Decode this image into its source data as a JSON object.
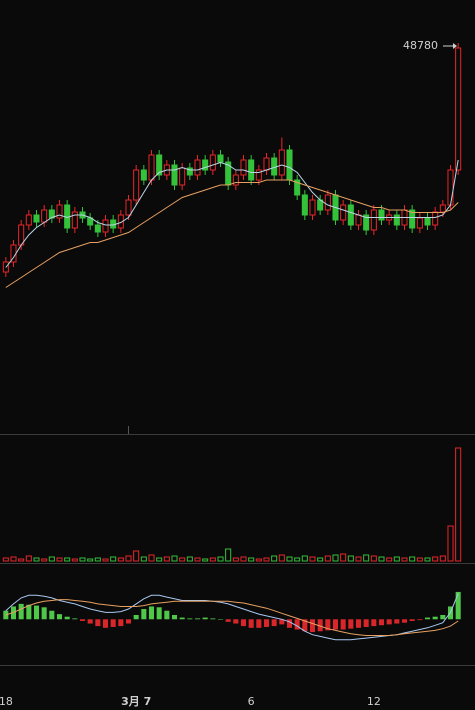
{
  "chart_data": {
    "type": "candlestick",
    "categories": [
      "18",
      null,
      null,
      null,
      null,
      null,
      null,
      null,
      null,
      null,
      null,
      null,
      null,
      null,
      null,
      null,
      null,
      "3月 7",
      null,
      null,
      null,
      null,
      null,
      null,
      null,
      null,
      null,
      null,
      null,
      null,
      null,
      null,
      "6",
      null,
      null,
      null,
      null,
      null,
      null,
      null,
      null,
      null,
      null,
      null,
      null,
      null,
      null,
      null,
      "12",
      null,
      null,
      null,
      null,
      null,
      null,
      null,
      null,
      null,
      null,
      null
    ],
    "open": [
      39620,
      40020,
      40700,
      41500,
      41900,
      41620,
      42100,
      41780,
      42300,
      41380,
      42020,
      41780,
      41500,
      41220,
      41700,
      41380,
      41900,
      42500,
      43700,
      43300,
      44300,
      43500,
      43900,
      43100,
      43780,
      43500,
      44100,
      43700,
      44300,
      44020,
      43100,
      43500,
      44100,
      43300,
      43700,
      44180,
      43500,
      44500,
      43300,
      42700,
      41900,
      42500,
      42100,
      42700,
      41700,
      42300,
      41500,
      41900,
      41300,
      42100,
      41700,
      41900,
      41500,
      42100,
      41380,
      41780,
      41500,
      42020,
      42300,
      43700
    ],
    "high": [
      40220,
      40900,
      41700,
      42100,
      42100,
      42300,
      42300,
      42500,
      42500,
      42220,
      42220,
      41980,
      41700,
      41900,
      41900,
      42100,
      42700,
      43900,
      43900,
      44500,
      44500,
      44100,
      44100,
      43980,
      43980,
      44300,
      44300,
      44500,
      44500,
      44220,
      43700,
      44300,
      44300,
      43900,
      44380,
      44380,
      45000,
      44700,
      43500,
      42900,
      42700,
      42700,
      42900,
      42900,
      42500,
      42500,
      42100,
      42100,
      42300,
      42300,
      42100,
      42100,
      42300,
      42300,
      41980,
      41980,
      42220,
      42500,
      43900,
      48780
    ],
    "low": [
      39420,
      39820,
      40500,
      41300,
      41420,
      41420,
      41580,
      41580,
      41180,
      41180,
      41580,
      41300,
      41020,
      41020,
      41180,
      41180,
      41700,
      42300,
      43100,
      43100,
      43300,
      43300,
      42900,
      42900,
      43300,
      43300,
      43500,
      43500,
      43820,
      42900,
      42900,
      43300,
      43100,
      43100,
      43500,
      43300,
      43300,
      43100,
      42500,
      41700,
      41700,
      41900,
      41900,
      41500,
      41500,
      41300,
      41300,
      41100,
      41100,
      41500,
      41500,
      41300,
      41300,
      41180,
      41180,
      41300,
      41300,
      41820,
      42100,
      43500
    ],
    "close": [
      40020,
      40700,
      41500,
      41900,
      41620,
      42100,
      41780,
      42300,
      41380,
      42020,
      41780,
      41500,
      41220,
      41700,
      41380,
      41900,
      42500,
      43700,
      43300,
      44300,
      43500,
      43900,
      43100,
      43780,
      43500,
      44100,
      43700,
      44300,
      44020,
      43100,
      43500,
      44100,
      43300,
      43700,
      44180,
      43500,
      44500,
      43300,
      42700,
      41900,
      42500,
      42100,
      42700,
      41700,
      42300,
      41500,
      41900,
      41300,
      42100,
      41700,
      41900,
      41500,
      42100,
      41380,
      41780,
      41500,
      42020,
      42300,
      43700,
      48580
    ],
    "up_color": "#e8262a",
    "down_color": "#33c23a",
    "ylim": [
      33300,
      50500
    ],
    "high_label": "48780",
    "lines": [
      {
        "color": "#b8d8e8",
        "values": [
          39800,
          40200,
          40700,
          41100,
          41400,
          41600,
          41800,
          41900,
          41800,
          41900,
          41900,
          41800,
          41600,
          41500,
          41500,
          41600,
          41800,
          42300,
          42800,
          43300,
          43600,
          43700,
          43700,
          43800,
          43700,
          43700,
          43800,
          43900,
          44000,
          43900,
          43700,
          43700,
          43600,
          43600,
          43700,
          43800,
          43900,
          43800,
          43600,
          43200,
          42800,
          42500,
          42300,
          42200,
          42100,
          42000,
          41900,
          41800,
          41800,
          41800,
          41800,
          41800,
          41800,
          41800,
          41800,
          41800,
          41800,
          41900,
          42300,
          44100
        ]
      },
      {
        "color": "#e8a060",
        "values": [
          39000,
          39200,
          39400,
          39600,
          39800,
          40000,
          40200,
          40400,
          40500,
          40600,
          40700,
          40800,
          40800,
          40900,
          41000,
          41100,
          41200,
          41400,
          41600,
          41800,
          42000,
          42200,
          42400,
          42600,
          42700,
          42800,
          42900,
          43000,
          43100,
          43100,
          43200,
          43200,
          43200,
          43200,
          43300,
          43300,
          43300,
          43300,
          43200,
          43100,
          43000,
          42900,
          42800,
          42700,
          42600,
          42500,
          42400,
          42300,
          42200,
          42200,
          42100,
          42100,
          42100,
          42000,
          42000,
          42000,
          42000,
          42000,
          42100,
          42400
        ]
      }
    ],
    "volume": {
      "ylim": [
        0,
        125
      ],
      "values": [
        3,
        4,
        2,
        5,
        3,
        2,
        4,
        3,
        3,
        2,
        3,
        2,
        3,
        2,
        4,
        3,
        5,
        10,
        4,
        6,
        3,
        4,
        5,
        3,
        4,
        3,
        2,
        3,
        4,
        12,
        3,
        4,
        3,
        2,
        3,
        5,
        6,
        4,
        3,
        5,
        4,
        3,
        5,
        6,
        7,
        5,
        4,
        6,
        5,
        4,
        3,
        4,
        3,
        4,
        3,
        3,
        4,
        5,
        35,
        113
      ]
    },
    "macd": {
      "ylim": [
        -50,
        60
      ],
      "hist": [
        10,
        15,
        18,
        17,
        16,
        14,
        10,
        6,
        3,
        1,
        -2,
        -5,
        -8,
        -10,
        -9,
        -8,
        -5,
        5,
        12,
        15,
        14,
        10,
        5,
        2,
        1,
        1,
        2,
        1,
        0,
        -3,
        -5,
        -8,
        -10,
        -10,
        -9,
        -8,
        -6,
        -10,
        -12,
        -14,
        -15,
        -14,
        -13,
        -12,
        -12,
        -11,
        -10,
        -9,
        -8,
        -7,
        -6,
        -5,
        -4,
        -2,
        -1,
        2,
        3,
        5,
        15,
        32
      ],
      "pos_color": "#4fc84a",
      "neg_color": "#d8262a",
      "lines": [
        {
          "color": "#a8c8f0",
          "values": [
            10,
            18,
            25,
            28,
            28,
            27,
            25,
            22,
            20,
            18,
            15,
            12,
            10,
            8,
            8,
            9,
            12,
            18,
            24,
            28,
            28,
            26,
            24,
            22,
            22,
            22,
            22,
            21,
            20,
            18,
            15,
            12,
            9,
            6,
            4,
            2,
            0,
            -3,
            -8,
            -14,
            -18,
            -20,
            -22,
            -24,
            -24,
            -24,
            -23,
            -22,
            -21,
            -20,
            -19,
            -18,
            -16,
            -14,
            -12,
            -10,
            -7,
            -4,
            8,
            30
          ]
        },
        {
          "color": "#e8a060",
          "values": [
            5,
            8,
            12,
            16,
            19,
            21,
            22,
            23,
            23,
            22,
            21,
            20,
            18,
            17,
            16,
            15,
            15,
            15,
            16,
            18,
            19,
            20,
            21,
            21,
            21,
            21,
            21,
            21,
            21,
            21,
            20,
            19,
            17,
            15,
            13,
            10,
            7,
            4,
            1,
            -2,
            -5,
            -8,
            -11,
            -13,
            -15,
            -17,
            -18,
            -19,
            -19,
            -19,
            -19,
            -18,
            -17,
            -16,
            -15,
            -14,
            -13,
            -11,
            -8,
            -2
          ]
        }
      ]
    }
  }
}
